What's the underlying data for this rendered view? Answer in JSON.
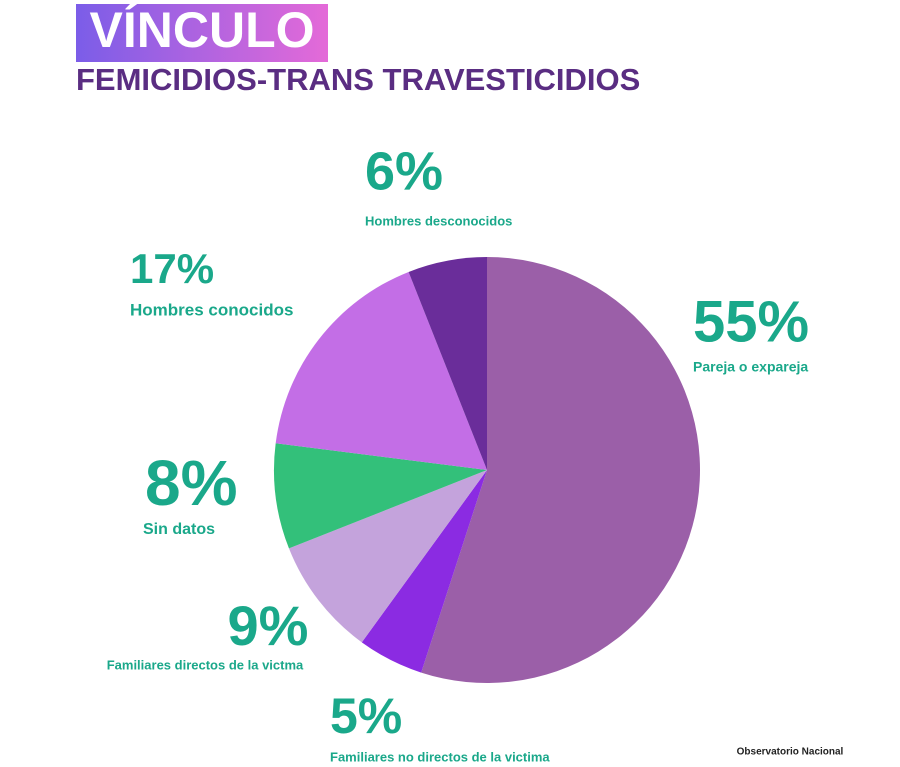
{
  "chart_data": {
    "type": "pie",
    "title": "VÍNCULO",
    "subtitle": "FEMICIDIOS-TRANS TRAVESTICIDIOS",
    "categories": [
      "Pareja o expareja",
      "Familiares no directos de la victima",
      "Familiares directos de la victma",
      "Sin datos",
      "Hombres conocidos",
      "Hombres desconocidos"
    ],
    "values": [
      55,
      5,
      9,
      8,
      17,
      6
    ],
    "value_labels": [
      "55%",
      "5%",
      "9%",
      "8%",
      "17%",
      "6%"
    ],
    "colors": [
      "#9b5fa8",
      "#8b2be2",
      "#c4a3dc",
      "#33c07a",
      "#c36ee6",
      "#6a2d9a"
    ],
    "footer": "Observatorio Nacional"
  }
}
